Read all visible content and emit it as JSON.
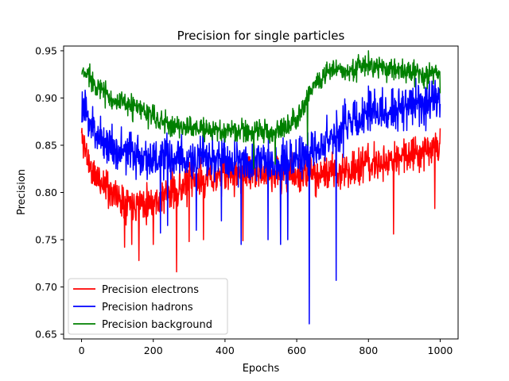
{
  "chart_data": {
    "type": "line",
    "title": "Precision for single particles",
    "xlabel": "Epochs",
    "ylabel": "Precision",
    "xlim": [
      -50,
      1050
    ],
    "ylim": [
      0.645,
      0.955
    ],
    "x_ticks": [
      0,
      200,
      400,
      600,
      800,
      1000
    ],
    "y_ticks": [
      0.65,
      0.7,
      0.75,
      0.8,
      0.85,
      0.9,
      0.95
    ],
    "y_tick_labels": [
      "0.65",
      "0.70",
      "0.75",
      "0.80",
      "0.85",
      "0.90",
      "0.95"
    ],
    "grid": false,
    "legend_position": "lower-left",
    "n_epochs": 1000,
    "series": [
      {
        "name": "Precision electrons",
        "color": "#ff0000",
        "anchors": [
          [
            0,
            0.86
          ],
          [
            30,
            0.82
          ],
          [
            60,
            0.81
          ],
          [
            100,
            0.795
          ],
          [
            150,
            0.79
          ],
          [
            200,
            0.79
          ],
          [
            250,
            0.8
          ],
          [
            300,
            0.81
          ],
          [
            350,
            0.815
          ],
          [
            400,
            0.82
          ],
          [
            450,
            0.82
          ],
          [
            500,
            0.82
          ],
          [
            550,
            0.82
          ],
          [
            600,
            0.82
          ],
          [
            650,
            0.82
          ],
          [
            700,
            0.82
          ],
          [
            750,
            0.825
          ],
          [
            800,
            0.83
          ],
          [
            850,
            0.83
          ],
          [
            900,
            0.84
          ],
          [
            950,
            0.845
          ],
          [
            1000,
            0.85
          ]
        ],
        "noise": 0.022,
        "spikes": [
          [
            120,
            0.742
          ],
          [
            140,
            0.745
          ],
          [
            160,
            0.728
          ],
          [
            200,
            0.745
          ],
          [
            265,
            0.716
          ],
          [
            300,
            0.748
          ],
          [
            340,
            0.75
          ],
          [
            450,
            0.749
          ],
          [
            870,
            0.756
          ],
          [
            985,
            0.783
          ]
        ],
        "seed": 11
      },
      {
        "name": "Precision hadrons",
        "color": "#0000ff",
        "anchors": [
          [
            0,
            0.89
          ],
          [
            30,
            0.87
          ],
          [
            60,
            0.855
          ],
          [
            100,
            0.845
          ],
          [
            150,
            0.84
          ],
          [
            200,
            0.835
          ],
          [
            250,
            0.835
          ],
          [
            300,
            0.835
          ],
          [
            350,
            0.835
          ],
          [
            400,
            0.835
          ],
          [
            450,
            0.835
          ],
          [
            500,
            0.835
          ],
          [
            550,
            0.835
          ],
          [
            600,
            0.835
          ],
          [
            650,
            0.845
          ],
          [
            700,
            0.86
          ],
          [
            750,
            0.875
          ],
          [
            800,
            0.885
          ],
          [
            850,
            0.885
          ],
          [
            900,
            0.89
          ],
          [
            950,
            0.895
          ],
          [
            1000,
            0.9
          ]
        ],
        "noise": 0.026,
        "spikes": [
          [
            220,
            0.757
          ],
          [
            240,
            0.765
          ],
          [
            320,
            0.76
          ],
          [
            390,
            0.77
          ],
          [
            445,
            0.745
          ],
          [
            520,
            0.75
          ],
          [
            555,
            0.745
          ],
          [
            575,
            0.75
          ],
          [
            635,
            0.661
          ],
          [
            710,
            0.707
          ]
        ],
        "seed": 23
      },
      {
        "name": "Precision background",
        "color": "#008000",
        "anchors": [
          [
            0,
            0.925
          ],
          [
            20,
            0.925
          ],
          [
            50,
            0.91
          ],
          [
            100,
            0.895
          ],
          [
            150,
            0.89
          ],
          [
            200,
            0.88
          ],
          [
            250,
            0.87
          ],
          [
            300,
            0.87
          ],
          [
            350,
            0.865
          ],
          [
            400,
            0.865
          ],
          [
            450,
            0.865
          ],
          [
            500,
            0.865
          ],
          [
            550,
            0.865
          ],
          [
            600,
            0.88
          ],
          [
            650,
            0.915
          ],
          [
            700,
            0.93
          ],
          [
            750,
            0.93
          ],
          [
            800,
            0.935
          ],
          [
            850,
            0.93
          ],
          [
            900,
            0.93
          ],
          [
            950,
            0.925
          ],
          [
            1000,
            0.925
          ]
        ],
        "noise": 0.014,
        "spikes": [
          [
            480,
            0.825
          ],
          [
            540,
            0.83
          ],
          [
            630,
            0.85
          ],
          [
            800,
            0.95
          ],
          [
            1000,
            0.905
          ]
        ],
        "seed": 37
      }
    ]
  }
}
